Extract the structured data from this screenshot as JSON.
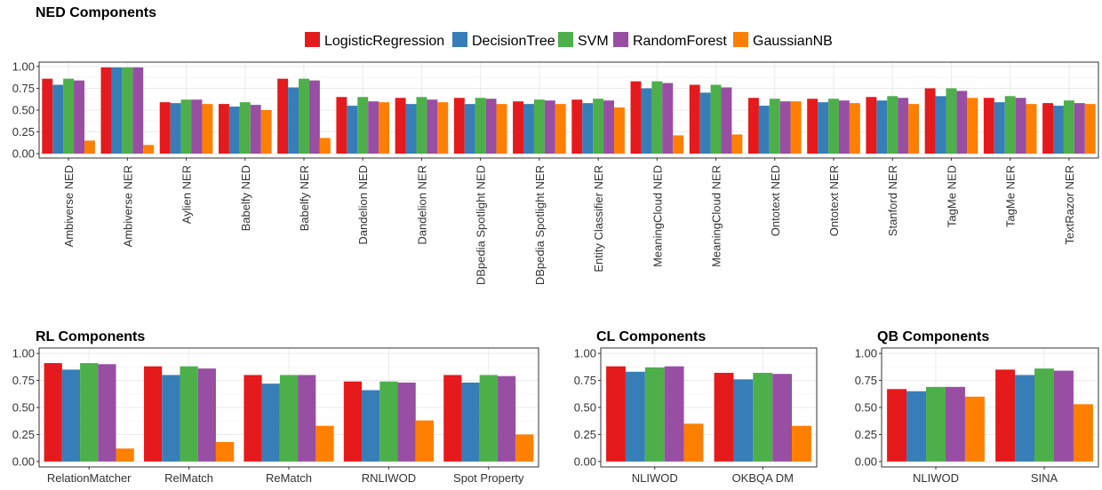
{
  "legend": [
    {
      "name": "LogisticRegression",
      "color": "#e41a1c"
    },
    {
      "name": "DecisionTree",
      "color": "#377eb8"
    },
    {
      "name": "SVM",
      "color": "#4daf4a"
    },
    {
      "name": "RandomForest",
      "color": "#984ea3"
    },
    {
      "name": "GaussianNB",
      "color": "#ff7f00"
    }
  ],
  "chart_data": [
    {
      "type": "bar",
      "title": "NED Components",
      "ylim": [
        0,
        1
      ],
      "yticks": [
        "0.00",
        "0.25",
        "0.50",
        "0.75",
        "1.00"
      ],
      "grid": true,
      "legend_position": "top",
      "categories": [
        "Ambiverse NED",
        "Ambiverse NER",
        "Aylien NER",
        "Babelfy NED",
        "Babelfy NER",
        "Dandelion NED",
        "Dandelion NER",
        "DBpedia Spotlight NED",
        "DBpedia Spotlight NER",
        "Entity Classifier NER",
        "MeaningCloud NED",
        "MeaningCloud NER",
        "Ontotext NED",
        "Ontotext NER",
        "Stanford NER",
        "TagMe NED",
        "TagMe NER",
        "TextRazor NER"
      ],
      "series": [
        {
          "name": "LogisticRegression",
          "values": [
            0.86,
            0.99,
            0.59,
            0.57,
            0.86,
            0.65,
            0.64,
            0.64,
            0.6,
            0.62,
            0.83,
            0.79,
            0.64,
            0.63,
            0.65,
            0.75,
            0.64,
            0.58
          ]
        },
        {
          "name": "DecisionTree",
          "values": [
            0.79,
            0.99,
            0.58,
            0.54,
            0.76,
            0.55,
            0.57,
            0.57,
            0.57,
            0.58,
            0.75,
            0.7,
            0.55,
            0.59,
            0.61,
            0.66,
            0.59,
            0.55
          ]
        },
        {
          "name": "SVM",
          "values": [
            0.86,
            0.99,
            0.62,
            0.59,
            0.86,
            0.65,
            0.65,
            0.64,
            0.62,
            0.63,
            0.83,
            0.79,
            0.63,
            0.63,
            0.66,
            0.75,
            0.66,
            0.61
          ]
        },
        {
          "name": "RandomForest",
          "values": [
            0.84,
            0.99,
            0.62,
            0.56,
            0.84,
            0.6,
            0.62,
            0.63,
            0.61,
            0.61,
            0.81,
            0.76,
            0.6,
            0.61,
            0.64,
            0.72,
            0.64,
            0.58
          ]
        },
        {
          "name": "GaussianNB",
          "values": [
            0.15,
            0.1,
            0.57,
            0.5,
            0.18,
            0.59,
            0.59,
            0.57,
            0.57,
            0.53,
            0.21,
            0.22,
            0.6,
            0.58,
            0.57,
            0.64,
            0.57,
            0.57
          ]
        }
      ]
    },
    {
      "type": "bar",
      "title": "RL Components",
      "ylim": [
        0,
        1
      ],
      "yticks": [
        "0.00",
        "0.25",
        "0.50",
        "0.75",
        "1.00"
      ],
      "grid": true,
      "categories": [
        "RelationMatcher",
        "RelMatch",
        "ReMatch",
        "RNLIWOD",
        "Spot Property"
      ],
      "series": [
        {
          "name": "LogisticRegression",
          "values": [
            0.91,
            0.88,
            0.8,
            0.74,
            0.8
          ]
        },
        {
          "name": "DecisionTree",
          "values": [
            0.85,
            0.8,
            0.72,
            0.66,
            0.73
          ]
        },
        {
          "name": "SVM",
          "values": [
            0.91,
            0.88,
            0.8,
            0.74,
            0.8
          ]
        },
        {
          "name": "RandomForest",
          "values": [
            0.9,
            0.86,
            0.8,
            0.73,
            0.79
          ]
        },
        {
          "name": "GaussianNB",
          "values": [
            0.12,
            0.18,
            0.33,
            0.38,
            0.25
          ]
        }
      ]
    },
    {
      "type": "bar",
      "title": "CL Components",
      "ylim": [
        0,
        1
      ],
      "yticks": [
        "0.00",
        "0.25",
        "0.50",
        "0.75",
        "1.00"
      ],
      "grid": true,
      "categories": [
        "NLIWOD",
        "OKBQA DM"
      ],
      "series": [
        {
          "name": "LogisticRegression",
          "values": [
            0.88,
            0.82
          ]
        },
        {
          "name": "DecisionTree",
          "values": [
            0.83,
            0.76
          ]
        },
        {
          "name": "SVM",
          "values": [
            0.87,
            0.82
          ]
        },
        {
          "name": "RandomForest",
          "values": [
            0.88,
            0.81
          ]
        },
        {
          "name": "GaussianNB",
          "values": [
            0.35,
            0.33
          ]
        }
      ]
    },
    {
      "type": "bar",
      "title": "QB Components",
      "ylim": [
        0,
        1
      ],
      "yticks": [
        "0.00",
        "0.25",
        "0.50",
        "0.75",
        "1.00"
      ],
      "grid": true,
      "categories": [
        "NLIWOD",
        "SINA"
      ],
      "series": [
        {
          "name": "LogisticRegression",
          "values": [
            0.67,
            0.85
          ]
        },
        {
          "name": "DecisionTree",
          "values": [
            0.65,
            0.8
          ]
        },
        {
          "name": "SVM",
          "values": [
            0.69,
            0.86
          ]
        },
        {
          "name": "RandomForest",
          "values": [
            0.69,
            0.84
          ]
        },
        {
          "name": "GaussianNB",
          "values": [
            0.6,
            0.53
          ]
        }
      ]
    }
  ]
}
